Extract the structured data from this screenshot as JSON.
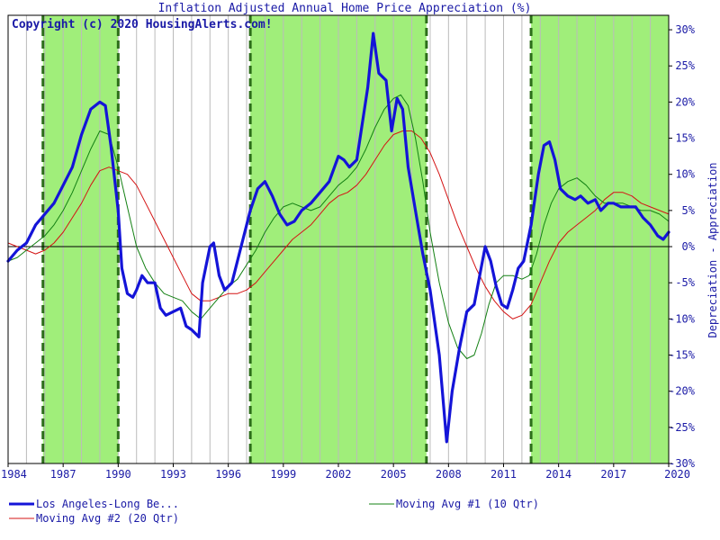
{
  "chart_data": {
    "type": "line",
    "title": "Inflation Adjusted Annual Home Price Appreciation (%)",
    "copyright": "Copyright (c) 2020 HousingAlerts.com!",
    "ylabel": "Depreciation - Appreciation",
    "xlim": [
      1984,
      2020
    ],
    "ylim": [
      -30,
      32
    ],
    "x_ticks": [
      1984,
      1987,
      1990,
      1993,
      1996,
      1999,
      2002,
      2005,
      2008,
      2011,
      2014,
      2017,
      2020
    ],
    "x_tick_labels": [
      "1984",
      "1987",
      "1990",
      "1993",
      "1996",
      "1999",
      "2002",
      "2005",
      "2008",
      "2011",
      "2014",
      "2017",
      "2020"
    ],
    "y_ticks": [
      30,
      25,
      20,
      15,
      10,
      5,
      0,
      -5,
      -10,
      -15,
      -20,
      -25,
      -30
    ],
    "y_tick_labels": [
      "30%",
      "25%",
      "20%",
      "15%",
      "10%",
      "5%",
      "0%",
      "-5%",
      "-10%",
      "-15%",
      "-20%",
      "-25%",
      "-30%"
    ],
    "green_periods": [
      [
        1985.9,
        1990.0
      ],
      [
        1997.2,
        2006.8
      ],
      [
        2012.5,
        2020.0
      ]
    ],
    "colors": {
      "shade": "#a0ee7a",
      "boundary": "#2d6e1a",
      "grid": "#bbbbbb",
      "zero_line": "#000000",
      "text": "#1a1aa6"
    },
    "legend": {
      "placement": "bottom",
      "entries": [
        "Los Angeles-Long Be...",
        "Moving Avg #1 (10 Qtr)",
        "Moving Avg #2 (20 Qtr)"
      ]
    },
    "series": [
      {
        "name": "Los Angeles-Long Be...",
        "color": "#1414d8",
        "width": 3.2,
        "points": [
          [
            1984.0,
            -2.0
          ],
          [
            1984.5,
            -0.5
          ],
          [
            1985.0,
            0.5
          ],
          [
            1985.5,
            3.0
          ],
          [
            1986.0,
            4.5
          ],
          [
            1986.5,
            6.0
          ],
          [
            1987.0,
            8.5
          ],
          [
            1987.5,
            11.0
          ],
          [
            1988.0,
            15.5
          ],
          [
            1988.5,
            19.0
          ],
          [
            1989.0,
            20.0
          ],
          [
            1989.3,
            19.5
          ],
          [
            1989.6,
            14.0
          ],
          [
            1990.0,
            5.0
          ],
          [
            1990.2,
            -3.0
          ],
          [
            1990.5,
            -6.5
          ],
          [
            1990.8,
            -7.0
          ],
          [
            1991.0,
            -6.0
          ],
          [
            1991.3,
            -4.0
          ],
          [
            1991.6,
            -5.0
          ],
          [
            1992.0,
            -5.0
          ],
          [
            1992.3,
            -8.5
          ],
          [
            1992.6,
            -9.5
          ],
          [
            1993.0,
            -9.0
          ],
          [
            1993.4,
            -8.5
          ],
          [
            1993.7,
            -11.0
          ],
          [
            1994.0,
            -11.5
          ],
          [
            1994.4,
            -12.5
          ],
          [
            1994.6,
            -5.0
          ],
          [
            1995.0,
            0.0
          ],
          [
            1995.2,
            0.5
          ],
          [
            1995.5,
            -4.0
          ],
          [
            1995.8,
            -6.0
          ],
          [
            1996.2,
            -5.0
          ],
          [
            1996.7,
            0.0
          ],
          [
            1997.2,
            5.0
          ],
          [
            1997.6,
            8.0
          ],
          [
            1998.0,
            9.0
          ],
          [
            1998.4,
            7.0
          ],
          [
            1998.8,
            4.5
          ],
          [
            1999.2,
            3.0
          ],
          [
            1999.6,
            3.5
          ],
          [
            2000.0,
            5.0
          ],
          [
            2000.5,
            6.0
          ],
          [
            2001.0,
            7.5
          ],
          [
            2001.5,
            9.0
          ],
          [
            2002.0,
            12.5
          ],
          [
            2002.3,
            12.0
          ],
          [
            2002.6,
            11.0
          ],
          [
            2003.0,
            12.0
          ],
          [
            2003.3,
            17.0
          ],
          [
            2003.6,
            22.0
          ],
          [
            2003.9,
            29.5
          ],
          [
            2004.2,
            24.0
          ],
          [
            2004.6,
            23.0
          ],
          [
            2004.9,
            16.0
          ],
          [
            2005.2,
            20.5
          ],
          [
            2005.5,
            19.0
          ],
          [
            2005.8,
            11.0
          ],
          [
            2006.2,
            5.0
          ],
          [
            2006.6,
            -1.0
          ],
          [
            2007.0,
            -6.0
          ],
          [
            2007.5,
            -15.0
          ],
          [
            2007.9,
            -27.0
          ],
          [
            2008.2,
            -20.0
          ],
          [
            2008.6,
            -14.0
          ],
          [
            2009.0,
            -9.0
          ],
          [
            2009.4,
            -8.0
          ],
          [
            2009.7,
            -4.0
          ],
          [
            2010.0,
            0.0
          ],
          [
            2010.3,
            -2.0
          ],
          [
            2010.6,
            -5.5
          ],
          [
            2010.9,
            -8.0
          ],
          [
            2011.2,
            -8.5
          ],
          [
            2011.5,
            -6.0
          ],
          [
            2011.8,
            -3.0
          ],
          [
            2012.1,
            -2.0
          ],
          [
            2012.5,
            3.0
          ],
          [
            2012.9,
            10.0
          ],
          [
            2013.2,
            14.0
          ],
          [
            2013.5,
            14.5
          ],
          [
            2013.8,
            12.0
          ],
          [
            2014.1,
            8.0
          ],
          [
            2014.5,
            7.0
          ],
          [
            2014.9,
            6.5
          ],
          [
            2015.2,
            7.0
          ],
          [
            2015.6,
            6.0
          ],
          [
            2016.0,
            6.5
          ],
          [
            2016.3,
            5.0
          ],
          [
            2016.7,
            6.0
          ],
          [
            2017.0,
            6.0
          ],
          [
            2017.4,
            5.5
          ],
          [
            2017.8,
            5.5
          ],
          [
            2018.2,
            5.5
          ],
          [
            2018.6,
            4.0
          ],
          [
            2019.0,
            3.0
          ],
          [
            2019.4,
            1.5
          ],
          [
            2019.7,
            1.0
          ],
          [
            2020.0,
            2.0
          ]
        ]
      },
      {
        "name": "Moving Avg #1 (10 Qtr)",
        "color": "#138013",
        "width": 1,
        "points": [
          [
            1984.0,
            -2.0
          ],
          [
            1984.5,
            -1.5
          ],
          [
            1985.0,
            -0.5
          ],
          [
            1985.5,
            0.5
          ],
          [
            1986.0,
            1.5
          ],
          [
            1986.5,
            3.0
          ],
          [
            1987.0,
            5.0
          ],
          [
            1987.5,
            7.5
          ],
          [
            1988.0,
            10.5
          ],
          [
            1988.5,
            13.5
          ],
          [
            1989.0,
            16.0
          ],
          [
            1989.5,
            15.5
          ],
          [
            1990.0,
            11.0
          ],
          [
            1990.5,
            5.5
          ],
          [
            1991.0,
            0.0
          ],
          [
            1991.5,
            -3.0
          ],
          [
            1992.0,
            -5.0
          ],
          [
            1992.5,
            -6.5
          ],
          [
            1993.0,
            -7.0
          ],
          [
            1993.5,
            -7.5
          ],
          [
            1994.0,
            -9.0
          ],
          [
            1994.5,
            -10.0
          ],
          [
            1995.0,
            -8.5
          ],
          [
            1995.5,
            -7.0
          ],
          [
            1996.0,
            -5.5
          ],
          [
            1996.5,
            -4.5
          ],
          [
            1997.0,
            -2.5
          ],
          [
            1997.5,
            -0.5
          ],
          [
            1998.0,
            2.0
          ],
          [
            1998.5,
            4.0
          ],
          [
            1999.0,
            5.5
          ],
          [
            1999.5,
            6.0
          ],
          [
            2000.0,
            5.5
          ],
          [
            2000.5,
            5.0
          ],
          [
            2001.0,
            5.5
          ],
          [
            2001.5,
            7.0
          ],
          [
            2002.0,
            8.5
          ],
          [
            2002.5,
            9.5
          ],
          [
            2003.0,
            11.0
          ],
          [
            2003.5,
            13.5
          ],
          [
            2004.0,
            16.5
          ],
          [
            2004.5,
            19.0
          ],
          [
            2005.0,
            20.5
          ],
          [
            2005.4,
            21.0
          ],
          [
            2005.8,
            19.5
          ],
          [
            2006.2,
            15.0
          ],
          [
            2006.6,
            9.0
          ],
          [
            2007.0,
            2.0
          ],
          [
            2007.5,
            -5.0
          ],
          [
            2008.0,
            -10.5
          ],
          [
            2008.5,
            -14.0
          ],
          [
            2009.0,
            -15.5
          ],
          [
            2009.4,
            -15.0
          ],
          [
            2009.8,
            -12.0
          ],
          [
            2010.2,
            -8.0
          ],
          [
            2010.6,
            -5.0
          ],
          [
            2011.0,
            -4.0
          ],
          [
            2011.5,
            -4.0
          ],
          [
            2012.0,
            -4.5
          ],
          [
            2012.4,
            -4.0
          ],
          [
            2012.8,
            -1.0
          ],
          [
            2013.2,
            3.0
          ],
          [
            2013.6,
            6.0
          ],
          [
            2014.0,
            8.0
          ],
          [
            2014.5,
            9.0
          ],
          [
            2015.0,
            9.5
          ],
          [
            2015.5,
            8.5
          ],
          [
            2016.0,
            7.0
          ],
          [
            2016.5,
            6.0
          ],
          [
            2017.0,
            6.0
          ],
          [
            2017.5,
            6.0
          ],
          [
            2018.0,
            5.5
          ],
          [
            2018.5,
            5.0
          ],
          [
            2019.0,
            5.0
          ],
          [
            2019.5,
            4.5
          ],
          [
            2020.0,
            3.5
          ]
        ]
      },
      {
        "name": "Moving Avg #2 (20 Qtr)",
        "color": "#d41414",
        "width": 1,
        "points": [
          [
            1984.0,
            0.5
          ],
          [
            1984.5,
            0.0
          ],
          [
            1985.0,
            -0.5
          ],
          [
            1985.5,
            -1.0
          ],
          [
            1986.0,
            -0.5
          ],
          [
            1986.5,
            0.5
          ],
          [
            1987.0,
            2.0
          ],
          [
            1987.5,
            4.0
          ],
          [
            1988.0,
            6.0
          ],
          [
            1988.5,
            8.5
          ],
          [
            1989.0,
            10.5
          ],
          [
            1989.5,
            11.0
          ],
          [
            1990.0,
            10.5
          ],
          [
            1990.5,
            10.0
          ],
          [
            1991.0,
            8.5
          ],
          [
            1991.5,
            6.0
          ],
          [
            1992.0,
            3.5
          ],
          [
            1992.5,
            1.0
          ],
          [
            1993.0,
            -1.5
          ],
          [
            1993.5,
            -4.0
          ],
          [
            1994.0,
            -6.5
          ],
          [
            1994.5,
            -7.5
          ],
          [
            1995.0,
            -7.5
          ],
          [
            1995.5,
            -7.0
          ],
          [
            1996.0,
            -6.5
          ],
          [
            1996.5,
            -6.5
          ],
          [
            1997.0,
            -6.0
          ],
          [
            1997.5,
            -5.0
          ],
          [
            1998.0,
            -3.5
          ],
          [
            1998.5,
            -2.0
          ],
          [
            1999.0,
            -0.5
          ],
          [
            1999.5,
            1.0
          ],
          [
            2000.0,
            2.0
          ],
          [
            2000.5,
            3.0
          ],
          [
            2001.0,
            4.5
          ],
          [
            2001.5,
            6.0
          ],
          [
            2002.0,
            7.0
          ],
          [
            2002.5,
            7.5
          ],
          [
            2003.0,
            8.5
          ],
          [
            2003.5,
            10.0
          ],
          [
            2004.0,
            12.0
          ],
          [
            2004.5,
            14.0
          ],
          [
            2005.0,
            15.5
          ],
          [
            2005.5,
            16.0
          ],
          [
            2006.0,
            16.0
          ],
          [
            2006.5,
            15.0
          ],
          [
            2007.0,
            13.0
          ],
          [
            2007.5,
            10.0
          ],
          [
            2008.0,
            6.5
          ],
          [
            2008.5,
            3.0
          ],
          [
            2009.0,
            0.0
          ],
          [
            2009.5,
            -3.0
          ],
          [
            2010.0,
            -5.5
          ],
          [
            2010.5,
            -7.5
          ],
          [
            2011.0,
            -9.0
          ],
          [
            2011.5,
            -10.0
          ],
          [
            2012.0,
            -9.5
          ],
          [
            2012.5,
            -8.0
          ],
          [
            2013.0,
            -5.0
          ],
          [
            2013.5,
            -2.0
          ],
          [
            2014.0,
            0.5
          ],
          [
            2014.5,
            2.0
          ],
          [
            2015.0,
            3.0
          ],
          [
            2015.5,
            4.0
          ],
          [
            2016.0,
            5.0
          ],
          [
            2016.5,
            6.5
          ],
          [
            2017.0,
            7.5
          ],
          [
            2017.5,
            7.5
          ],
          [
            2018.0,
            7.0
          ],
          [
            2018.5,
            6.0
          ],
          [
            2019.0,
            5.5
          ],
          [
            2019.5,
            5.0
          ],
          [
            2020.0,
            4.5
          ]
        ]
      }
    ]
  }
}
